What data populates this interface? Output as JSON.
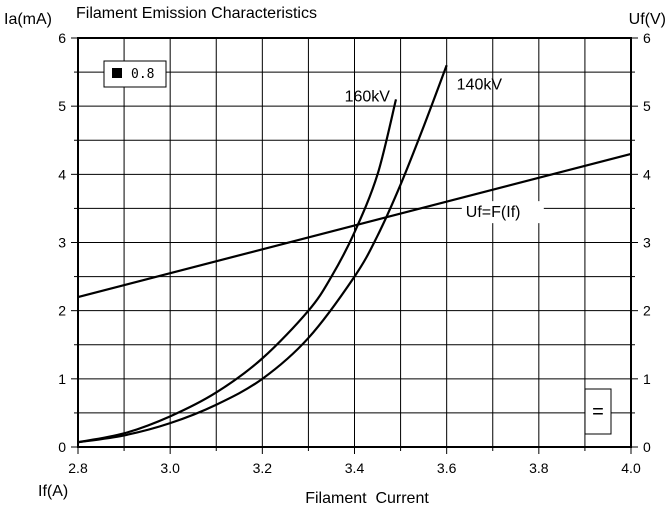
{
  "chart_data": {
    "type": "line",
    "title": "Filament Emission Characteristics",
    "xlabel": "Filament  Current",
    "x_unit_label": "If(A)",
    "ylabel_left": "Ia(mA)",
    "ylabel_right": "Uf(V)",
    "xlim": [
      2.8,
      4.0
    ],
    "ylim": [
      0,
      6
    ],
    "x_ticks": [
      "2.8",
      "3.0",
      "3.2",
      "3.4",
      "3.6",
      "3.8",
      "4.0"
    ],
    "y_ticks": [
      "0",
      "1",
      "2",
      "3",
      "4",
      "5",
      "6"
    ],
    "grid": true,
    "legend": {
      "text": "0.8",
      "placement": "top-left"
    },
    "symbol_box": "=",
    "series": [
      {
        "name": "160kV",
        "x": [
          2.8,
          2.9,
          3.0,
          3.1,
          3.2,
          3.3,
          3.35,
          3.4,
          3.45,
          3.49
        ],
        "y": [
          0.07,
          0.2,
          0.45,
          0.8,
          1.3,
          2.0,
          2.5,
          3.15,
          4.0,
          5.1
        ]
      },
      {
        "name": "140kV",
        "x": [
          2.8,
          2.9,
          3.0,
          3.1,
          3.2,
          3.3,
          3.4,
          3.45,
          3.5,
          3.55,
          3.6
        ],
        "y": [
          0.07,
          0.17,
          0.35,
          0.62,
          1.0,
          1.6,
          2.5,
          3.1,
          3.85,
          4.7,
          5.6
        ]
      },
      {
        "name": "Uf=F(If)",
        "x": [
          2.8,
          4.0
        ],
        "y": [
          2.2,
          4.3
        ]
      }
    ]
  }
}
